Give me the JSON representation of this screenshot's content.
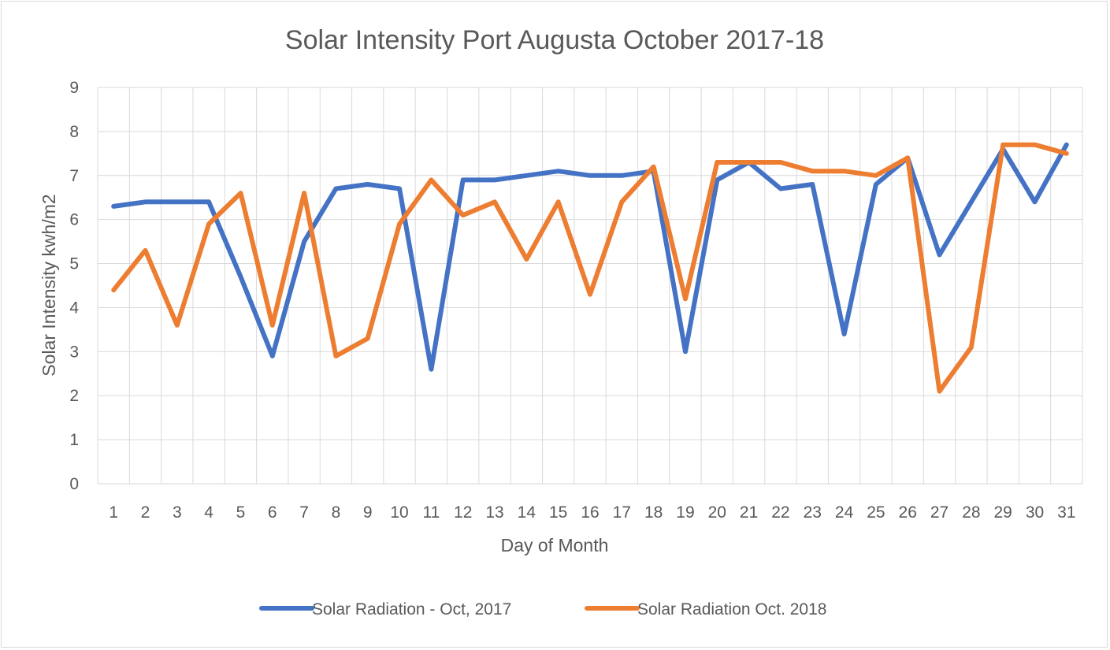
{
  "chart_data": {
    "type": "line",
    "title": "Solar Intensity Port Augusta October 2017-18",
    "xlabel": "Day of Month",
    "ylabel": "Solar Intensity kwh/m2",
    "ylim": [
      0,
      9
    ],
    "yticks": [
      "0",
      "1",
      "2",
      "3",
      "4",
      "5",
      "6",
      "7",
      "8",
      "9"
    ],
    "categories": [
      "1",
      "2",
      "3",
      "4",
      "5",
      "6",
      "7",
      "8",
      "9",
      "10",
      "11",
      "12",
      "13",
      "14",
      "15",
      "16",
      "17",
      "18",
      "19",
      "20",
      "21",
      "22",
      "23",
      "24",
      "25",
      "26",
      "27",
      "28",
      "29",
      "30",
      "31"
    ],
    "grid": true,
    "legend_position": "bottom",
    "series": [
      {
        "name": "Solar Radiation - Oct, 2017",
        "color": "#4472c4",
        "values": [
          6.3,
          6.4,
          6.4,
          6.4,
          4.7,
          2.9,
          5.5,
          6.7,
          6.8,
          6.7,
          2.6,
          6.9,
          6.9,
          7.0,
          7.1,
          7.0,
          7.0,
          7.1,
          3.0,
          6.9,
          7.3,
          6.7,
          6.8,
          3.4,
          6.8,
          7.4,
          5.2,
          6.4,
          7.6,
          6.4,
          7.7
        ]
      },
      {
        "name": "Solar Radiation Oct. 2018",
        "color": "#ed7d31",
        "values": [
          4.4,
          5.3,
          3.6,
          5.9,
          6.6,
          3.6,
          6.6,
          2.9,
          3.3,
          5.9,
          6.9,
          6.1,
          6.4,
          5.1,
          6.4,
          4.3,
          6.4,
          7.2,
          4.2,
          7.3,
          7.3,
          7.3,
          7.1,
          7.1,
          7.0,
          7.4,
          2.1,
          3.1,
          7.7,
          7.7,
          7.5
        ]
      }
    ]
  }
}
